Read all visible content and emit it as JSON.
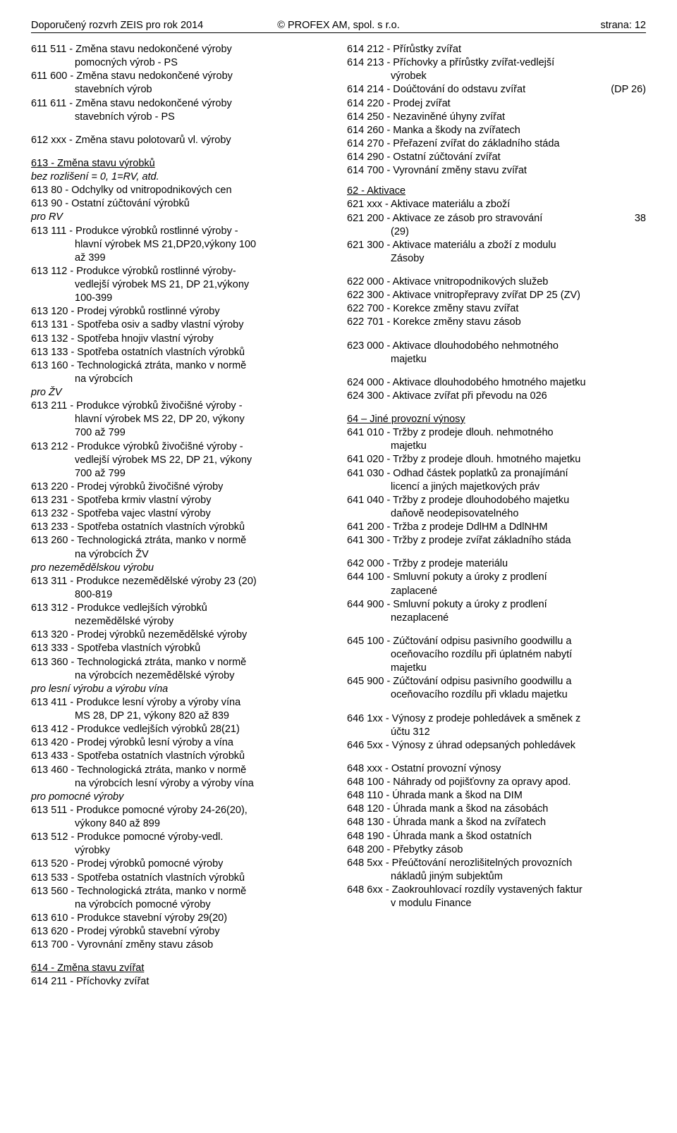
{
  "header": {
    "left": "Doporučený rozvrh ZEIS pro rok 2014",
    "center": "© PROFEX AM, spol. s r.o.",
    "right": "strana:  12"
  },
  "left_col": {
    "l1": "611 511 - Změna stavu nedokončené výroby",
    "l1b": "pomocných výrob - PS",
    "l2": "611 600 - Změna stavu nedokončené výroby",
    "l2b": "stavebních výrob",
    "l3": "611 611 - Změna stavu nedokončené výroby",
    "l3b": "stavebních výrob - PS",
    "l4": "612 xxx - Změna stavu polotovarů vl. výroby",
    "sec613": "613 - Změna stavu výrobků",
    "l5": "bez rozlišení = 0, 1=RV, atd.",
    "l6": "613 80 - Odchylky od vnitropodnikových cen",
    "l7": "613 90 - Ostatní zúčtování výrobků",
    "rv": "pro RV",
    "l8": "613 111 - Produkce výrobků rostlinné výroby -",
    "l8b": "hlavní  výrobek MS 21,DP20,výkony 100",
    "l8c": "až 399",
    "l9": "613 112 - Produkce výrobků rostlinné výroby-",
    "l9b": "vedlejší výrobek MS 21, DP 21,výkony",
    "l9c": "100-399",
    "l10": "613 120 - Prodej výrobků rostlinné výroby",
    "l11": "613 131 - Spotřeba osiv a sadby vlastní výroby",
    "l12": "613 132 - Spotřeba hnojiv vlastní výroby",
    "l13": "613 133 - Spotřeba ostatních vlastních výrobků",
    "l14": "613 160 - Technologická ztráta, manko v normě",
    "l14b": "na výrobcích",
    "zv": "pro ŽV",
    "l15": "613 211 - Produkce výrobků živočišné  výroby -",
    "l15b": "hlavní výrobek MS 22, DP 20, výkony",
    "l15c": "700 až 799",
    "l16": "613 212 - Produkce výrobků živočišné výroby -",
    "l16b": "vedlejší výrobek MS 22, DP 21, výkony",
    "l16c": "700 až 799",
    "l17": "613 220 - Prodej výrobků živočišné výroby",
    "l18": "613 231 - Spotřeba krmiv vlastní výroby",
    "l19": "613 232 - Spotřeba vajec vlastní výroby",
    "l20": "613 233 - Spotřeba ostatních vlastních výrobků",
    "l21": "613 260 - Technologická ztráta, manko v normě",
    "l21b": "na výrobcích ŽV",
    "nzv": "pro nezemědělskou výrobu",
    "l22": "613 311 - Produkce nezemědělské výroby 23 (20)",
    "l22b": "800-819",
    "l23": "613 312 - Produkce vedlejších výrobků",
    "l23b": "nezemědělské výroby",
    "l24": "613 320 - Prodej výrobků nezemědělské výroby",
    "l25": "613 333 - Spotřeba vlastních výrobků",
    "l26": "613 360 - Technologická ztráta, manko v normě",
    "l26b": "na výrobcích nezemědělské výroby",
    "lesni": "pro lesní výrobu a výrobu vína",
    "l27": "613 411 - Produkce lesní výroby a výroby vína",
    "l27b": "MS 28, DP 21, výkony 820 až 839",
    "l28": "613 412 - Produkce vedlejších výrobků    28(21)",
    "l29": "613 420 - Prodej výrobků lesní výroby a vína",
    "l30": "613 433 - Spotřeba ostatních vlastních výrobků",
    "l31": "613 460 - Technologická ztráta, manko v normě",
    "l31b": "na výrobcích lesní výroby a výroby vína",
    "pomoc": "pro pomocné výroby",
    "l32": "613 511 - Produkce pomocné výroby    24-26(20),",
    "l32b": "výkony 840 až 899",
    "l33": "613 512 - Produkce pomocné výroby-vedl.",
    "l33b": "výrobky",
    "l34": "613 520 - Prodej výrobků pomocné výroby",
    "l35": "613 533 - Spotřeba ostatních vlastních výrobků",
    "l36": "613 560 - Technologická ztráta, manko v normě",
    "l36b": "na výrobcích pomocné výroby",
    "l37": "613 610 - Produkce stavební výroby        29(20)",
    "l38": "613 620 - Prodej výrobků stavební výroby",
    "l39": "613 700 - Vyrovnání změny stavu zásob",
    "sec614": "614 - Změna stavu zvířat",
    "l40": "614 211 - Příchovky zvířat"
  },
  "right_col": {
    "r1": "614 212 - Přírůstky zvířat",
    "r2": "614 213 - Příchovky a přírůstky zvířat-vedlejší",
    "r2b": "výrobek",
    "r3a": "614 214 - Doúčtování do odstavu zvířat",
    "r3b": "(DP 26)",
    "r4": "614 220 - Prodej zvířat",
    "r5": "614 250 - Nezaviněné úhyny zvířat",
    "r6": "614 260 - Manka a škody na zvířatech",
    "r7": "614 270 - Přeřazení zvířat do základního stáda",
    "r8": "614 290 - Ostatní zúčtování zvířat",
    "r9": "614 700 - Vyrovnání změny stavu zvířat",
    "sec62": "62 - Aktivace",
    "r10": "621 xxx - Aktivace materiálu a zboží",
    "r11a": "621 200 - Aktivace ze zásob pro stravování",
    "r11num": "38",
    "r11b": "(29)",
    "r12": "621 300 - Aktivace materiálu a zboží z modulu",
    "r12b": "Zásoby",
    "r13": "622 000 - Aktivace vnitropodnikových služeb",
    "r14": "622 300 - Aktivace vnitropřepravy zvířat DP 25 (ZV)",
    "r15": "622 700 - Korekce změny stavu zvířat",
    "r16": "622 701 - Korekce změny stavu zásob",
    "r17": "623 000 - Aktivace dlouhodobého nehmotného",
    "r17b": "majetku",
    "r18": "624 000 - Aktivace dlouhodobého hmotného majetku",
    "r19": "624 300 - Aktivace zvířat při převodu na 026",
    "sec64": "64 – Jiné provozní výnosy",
    "r20": "641 010 - Tržby z prodeje dlouh. nehmotného",
    "r20b": "majetku",
    "r21": "641 020 - Tržby z prodeje dlouh. hmotného majetku",
    "r22": "641 030 - Odhad částek poplatků za pronajímání",
    "r22b": "licencí a jiných majetkových práv",
    "r23": "641 040 - Tržby z prodeje dlouhodobého majetku",
    "r23b": "daňově neodepisovatelného",
    "r24": "641 200 - Tržba z prodeje DdlHM a DdlNHM",
    "r25": "641 300 - Tržby z prodeje zvířat základního stáda",
    "r26": "642 000 - Tržby z prodeje materiálu",
    "r27": "644 100 - Smluvní pokuty a úroky z prodlení",
    "r27b": "zaplacené",
    "r28": "644 900 - Smluvní pokuty a úroky z prodlení",
    "r28b": "nezaplacené",
    "r29": "645 100 - Zúčtování odpisu pasivního goodwillu a",
    "r29b": "oceňovacího rozdílu při úplatném nabytí",
    "r29c": "majetku",
    "r30": "645 900 - Zúčtování odpisu pasivního goodwillu a",
    "r30b": "oceňovacího rozdílu při vkladu majetku",
    "r31": "646 1xx - Výnosy z prodeje pohledávek a směnek z",
    "r31b": "účtu 312",
    "r32": "646 5xx - Výnosy z úhrad odepsaných pohledávek",
    "r33": "648 xxx - Ostatní provozní výnosy",
    "r34": "648 100 - Náhrady od pojišťovny za opravy apod.",
    "r35": "648 110 - Úhrada mank a škod na DIM",
    "r36": "648 120 - Úhrada mank a škod na zásobách",
    "r37": "648 130 - Úhrada mank a škod na zvířatech",
    "r38": "648 190 - Úhrada mank a škod ostatních",
    "r39": "648 200 - Přebytky zásob",
    "r40": "648 5xx - Přeúčtování  nerozlišitelných provozních",
    "r40b": "nákladů jiným subjektům",
    "r41": "648 6xx - Zaokrouhlovací rozdíly vystavených faktur",
    "r41b": "v  modulu Finance"
  }
}
